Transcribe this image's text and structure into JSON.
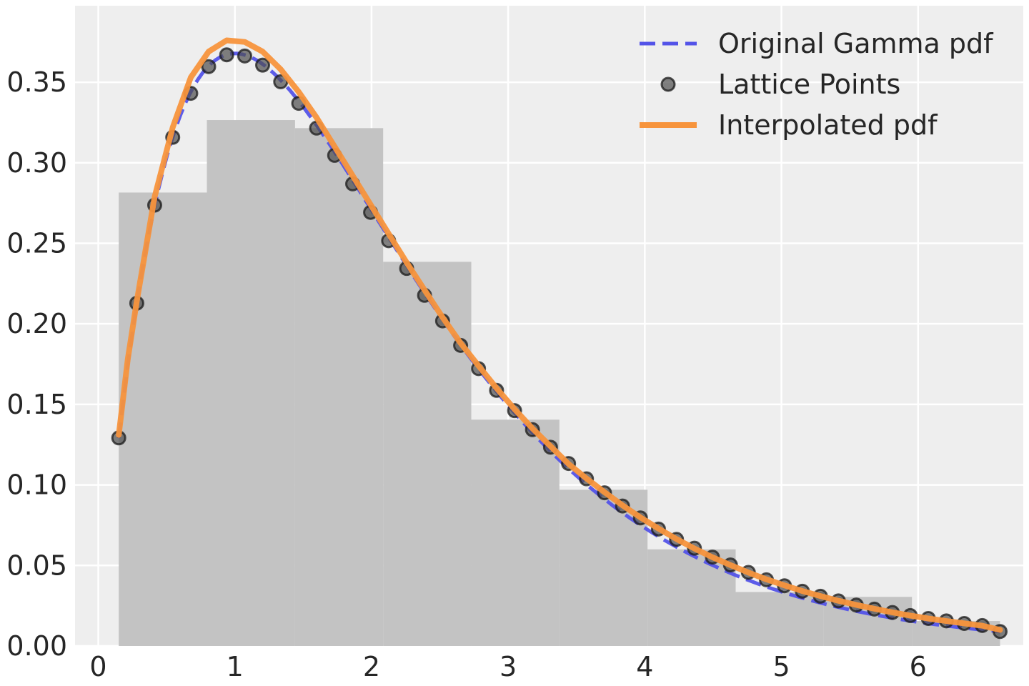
{
  "chart_data": {
    "type": "line",
    "title": "",
    "xlabel": "",
    "ylabel": "",
    "xlim": [
      -0.17,
      6.77
    ],
    "ylim": [
      0,
      0.3975
    ],
    "xticks": [
      0,
      1,
      2,
      3,
      4,
      5,
      6
    ],
    "yticks": [
      0.0,
      0.05,
      0.1,
      0.15,
      0.2,
      0.25,
      0.3,
      0.35
    ],
    "xtick_labels": [
      "0",
      "1",
      "2",
      "3",
      "4",
      "5",
      "6"
    ],
    "ytick_labels": [
      "0.00",
      "0.05",
      "0.10",
      "0.15",
      "0.20",
      "0.25",
      "0.30",
      "0.35"
    ],
    "grid": true,
    "background": "#eeeeee",
    "legend_position": "top-right",
    "histogram": {
      "name": "",
      "color": "#c0c0c0",
      "bin_edges": [
        0.15,
        0.795,
        1.44,
        2.085,
        2.73,
        3.375,
        4.02,
        4.665,
        5.31,
        5.955,
        6.6
      ],
      "heights": [
        0.2815,
        0.3265,
        0.3215,
        0.2385,
        0.1405,
        0.097,
        0.06,
        0.0335,
        0.0305,
        0.0155
      ]
    },
    "series": [
      {
        "name": "Original Gamma pdf",
        "kind": "line",
        "style": "dashed",
        "color": "#5353e8",
        "gamma_shape": 2,
        "x_range": [
          0.15,
          6.6
        ]
      },
      {
        "name": "Lattice Points",
        "kind": "scatter",
        "color": "#4d4d4d",
        "x": [
          0.15,
          0.282,
          0.413,
          0.545,
          0.677,
          0.808,
          0.94,
          1.072,
          1.203,
          1.335,
          1.467,
          1.598,
          1.73,
          1.862,
          1.993,
          2.125,
          2.257,
          2.388,
          2.52,
          2.652,
          2.783,
          2.915,
          3.047,
          3.178,
          3.31,
          3.442,
          3.573,
          3.705,
          3.837,
          3.968,
          4.1,
          4.232,
          4.363,
          4.495,
          4.627,
          4.758,
          4.89,
          5.022,
          5.153,
          5.285,
          5.417,
          5.548,
          5.68,
          5.812,
          5.943,
          6.075,
          6.207,
          6.338,
          6.47,
          6.6
        ],
        "y": [
          0.1292,
          0.2128,
          0.2737,
          0.3158,
          0.3431,
          0.3597,
          0.367,
          0.3663,
          0.3606,
          0.3503,
          0.3369,
          0.3215,
          0.3046,
          0.2869,
          0.2692,
          0.2516,
          0.2344,
          0.2177,
          0.2018,
          0.1866,
          0.1722,
          0.1587,
          0.1461,
          0.1343,
          0.1234,
          0.1133,
          0.1038,
          0.0951,
          0.0869,
          0.0795,
          0.0726,
          0.0662,
          0.0607,
          0.0552,
          0.0503,
          0.0457,
          0.0411,
          0.0374,
          0.034,
          0.0309,
          0.028,
          0.0254,
          0.0229,
          0.0208,
          0.0189,
          0.0171,
          0.0156,
          0.014,
          0.0127,
          0.009
        ]
      },
      {
        "name": "Interpolated pdf",
        "kind": "line",
        "style": "solid",
        "color": "#f7943c",
        "x": [
          0.15,
          0.216,
          0.282,
          0.413,
          0.545,
          0.677,
          0.808,
          0.94,
          1.072,
          1.203,
          1.335,
          1.467,
          1.598,
          1.73,
          1.862,
          1.993,
          2.125,
          2.257,
          2.388,
          2.52,
          2.652,
          2.783,
          2.915,
          3.047,
          3.178,
          3.31,
          3.442,
          3.573,
          3.705,
          3.837,
          3.968,
          4.1,
          4.232,
          4.363,
          4.495,
          4.627,
          4.758,
          4.89,
          5.022,
          5.153,
          5.285,
          5.417,
          5.548,
          5.68,
          5.812,
          5.943,
          6.075,
          6.207,
          6.338,
          6.47,
          6.6
        ],
        "y": [
          0.131,
          0.178,
          0.214,
          0.279,
          0.322,
          0.353,
          0.369,
          0.376,
          0.375,
          0.369,
          0.358,
          0.344,
          0.328,
          0.31,
          0.292,
          0.274,
          0.256,
          0.238,
          0.221,
          0.204,
          0.188,
          0.174,
          0.16,
          0.147,
          0.135,
          0.124,
          0.113,
          0.104,
          0.0955,
          0.0873,
          0.0798,
          0.0729,
          0.0664,
          0.0605,
          0.0551,
          0.0502,
          0.0456,
          0.0414,
          0.0376,
          0.0341,
          0.031,
          0.0281,
          0.0255,
          0.0231,
          0.0209,
          0.0189,
          0.0171,
          0.0155,
          0.014,
          0.0126,
          0.01
        ]
      }
    ]
  }
}
